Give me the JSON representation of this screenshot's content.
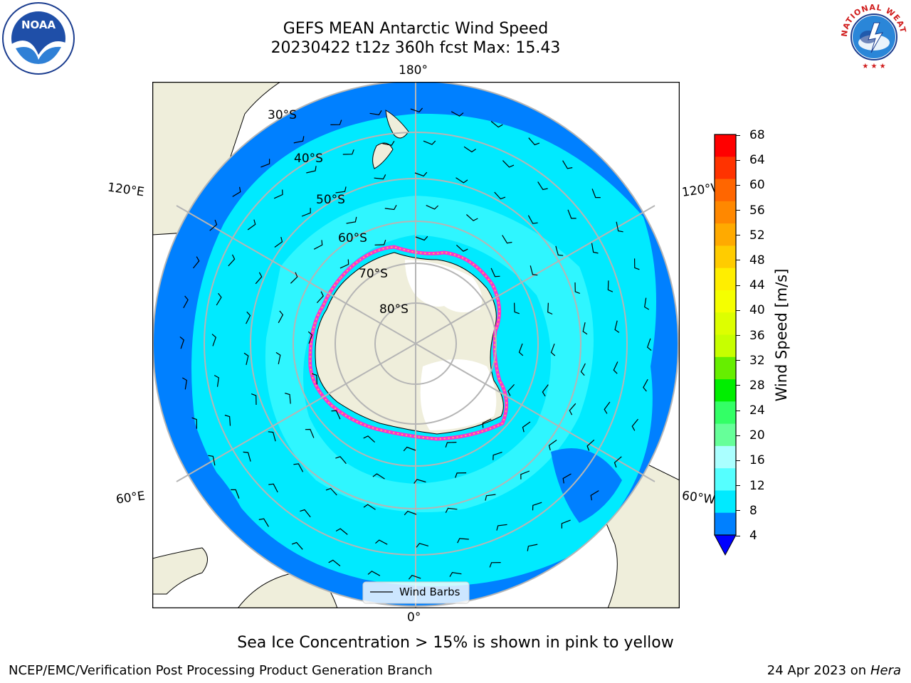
{
  "header": {
    "title_line1": "GEFS MEAN Antarctic Wind Speed",
    "title_line2": "20230422 t12z 360h fcst   Max: 15.43"
  },
  "logos": {
    "left": {
      "icon": "noaa-logo",
      "text": "NOAA"
    },
    "right": {
      "icon": "national-weather-service-logo",
      "text": "NATIONAL WEATHER SERVICE"
    }
  },
  "map": {
    "projection": "south-polar-stereographic",
    "longitude_labels": {
      "top": "180°",
      "bottom": "0°",
      "upper_left": "120°E",
      "upper_right": "120°W",
      "lower_left": "60°E",
      "lower_right": "60°W"
    },
    "latitude_labels": [
      "30°S",
      "40°S",
      "50°S",
      "60°S",
      "70°S",
      "80°S"
    ],
    "legend": {
      "label": "Wind Barbs"
    },
    "colors": {
      "ocean_dark": "#0080ff",
      "ocean_mid": "#00eaff",
      "ocean_light": "#55ffff",
      "land": "#efeedb",
      "ice_edge": "#ff33cc",
      "grid": "#b5b5b5"
    }
  },
  "colorbar": {
    "label": "Wind Speed [m/s]",
    "ticks": [
      "68",
      "64",
      "60",
      "56",
      "52",
      "48",
      "44",
      "40",
      "36",
      "32",
      "28",
      "24",
      "20",
      "16",
      "12",
      "8",
      "4"
    ],
    "colors": [
      "#ff0000",
      "#ff3300",
      "#ff6600",
      "#ff8800",
      "#ffaa00",
      "#ffcc00",
      "#ffee00",
      "#f5ff00",
      "#ddff00",
      "#c7ff00",
      "#66ee00",
      "#00ee00",
      "#33ff66",
      "#66ff99",
      "#aaffff",
      "#55ffff",
      "#00eaff",
      "#0080ff"
    ],
    "extend_color": "#0000ff"
  },
  "caption": "Sea Ice Concentration > 15% is shown in pink to yellow",
  "footer": {
    "left": "NCEP/EMC/Verification Post Processing Product Generation Branch",
    "right_prefix": "24 Apr 2023 on ",
    "right_machine": "Hera"
  }
}
